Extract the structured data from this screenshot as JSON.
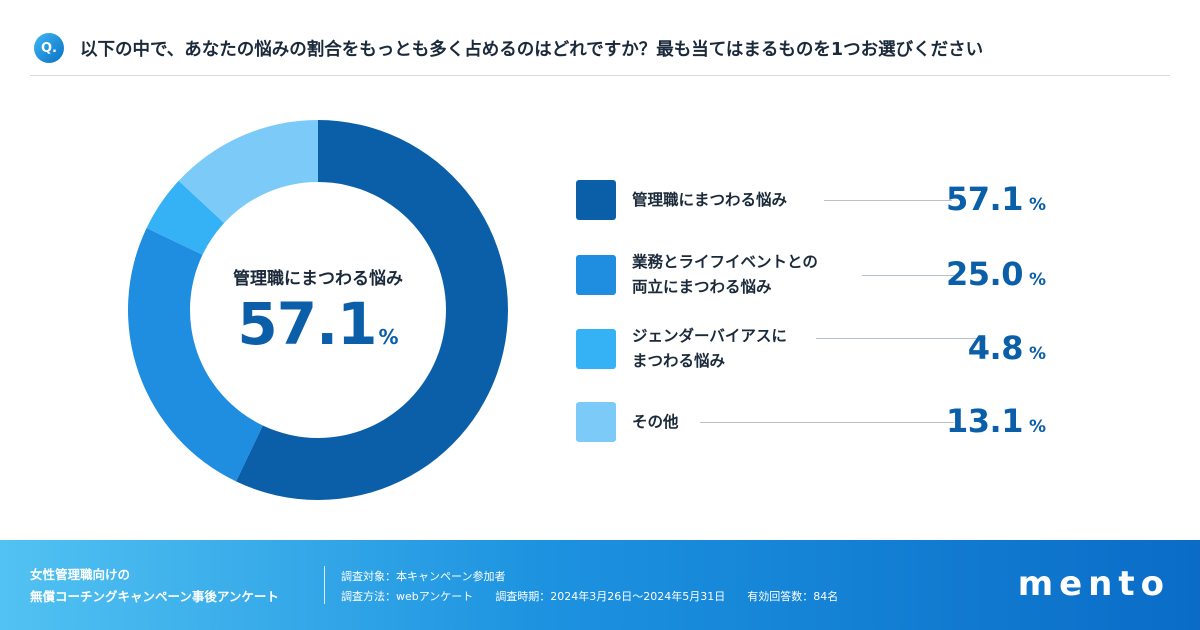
{
  "header": {
    "badge": "Q.",
    "question": "以下の中で、あなたの悩みの割合をもっとも多く占めるのはどれですか？最も当てはまるものを1つお選びください"
  },
  "center": {
    "label": "管理職にまつわる悩み",
    "value": "57.1",
    "unit": "%"
  },
  "chart_data": {
    "type": "pie",
    "categories": [
      "管理職にまつわる悩み",
      "業務とライフイベントとの両立にまつわる悩み",
      "ジェンダーバイアスにまつわる悩み",
      "その他"
    ],
    "values": [
      57.1,
      25.0,
      4.8,
      13.1
    ],
    "colors": [
      "#0b5fa8",
      "#1f8de0",
      "#35b2f5",
      "#7ccaf7"
    ],
    "unit": "%",
    "legend_placement": "right"
  },
  "legend": [
    {
      "line1": "管理職にまつわる悩み",
      "line2": "",
      "value": "57.1",
      "unit": "%",
      "color": "#0b5fa8"
    },
    {
      "line1": "業務とライフイベントとの",
      "line2": "両立にまつわる悩み",
      "value": "25.0",
      "unit": "%",
      "color": "#1f8de0"
    },
    {
      "line1": "ジェンダーバイアスに",
      "line2": "まつわる悩み",
      "value": "4.8",
      "unit": "%",
      "color": "#35b2f5"
    },
    {
      "line1": "その他",
      "line2": "",
      "value": "13.1",
      "unit": "%",
      "color": "#7ccaf7"
    }
  ],
  "footer": {
    "title_line1": "女性管理職向けの",
    "title_line2": "無償コーチングキャンペーン事後アンケート",
    "target": "調査対象：本キャンペーン参加者",
    "method": "調査方法：webアンケート",
    "period": "調査時期：2024年3月26日〜2024年5月31日",
    "responses": "有効回答数：84名",
    "logo": "mento"
  }
}
